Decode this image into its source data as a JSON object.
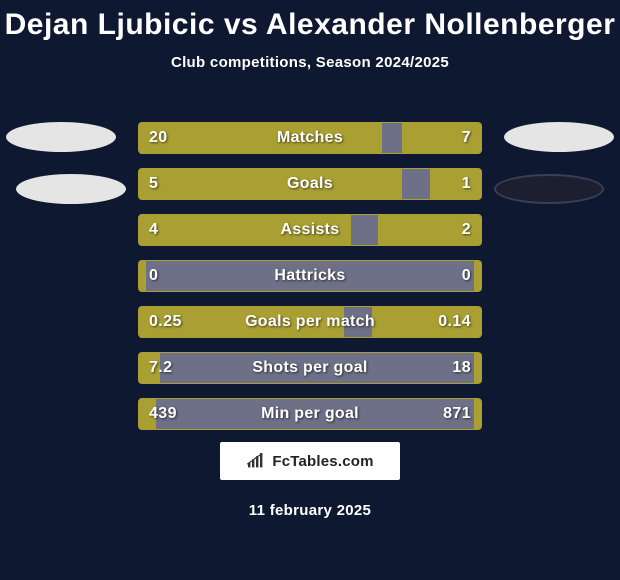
{
  "title": "Dejan Ljubicic vs Alexander Nollenberger",
  "subtitle": "Club competitions, Season 2024/2025",
  "colors": {
    "bg": "#0f1831",
    "bar_fill": "#a99f33",
    "bar_bg": "#6d7086",
    "text": "#ffffff"
  },
  "badges": {
    "left1_color": "#e5e5e5",
    "left2_color": "#e5e5e5",
    "right1_color": "#e5e5e5",
    "right2_color": "#1b1f30"
  },
  "rows": [
    {
      "label": "Matches",
      "left": "20",
      "right": "7",
      "lw": 71,
      "rw": 23
    },
    {
      "label": "Goals",
      "left": "5",
      "right": "1",
      "lw": 77,
      "rw": 15
    },
    {
      "label": "Assists",
      "left": "4",
      "right": "2",
      "lw": 62,
      "rw": 30
    },
    {
      "label": "Hattricks",
      "left": "0",
      "right": "0",
      "lw": 2,
      "rw": 2
    },
    {
      "label": "Goals per match",
      "left": "0.25",
      "right": "0.14",
      "lw": 60,
      "rw": 32
    },
    {
      "label": "Shots per goal",
      "left": "7.2",
      "right": "18",
      "lw": 6,
      "rw": 2
    },
    {
      "label": "Min per goal",
      "left": "439",
      "right": "871",
      "lw": 5,
      "rw": 2
    }
  ],
  "footer": {
    "brand": "FcTables.com",
    "date": "11 february 2025"
  }
}
